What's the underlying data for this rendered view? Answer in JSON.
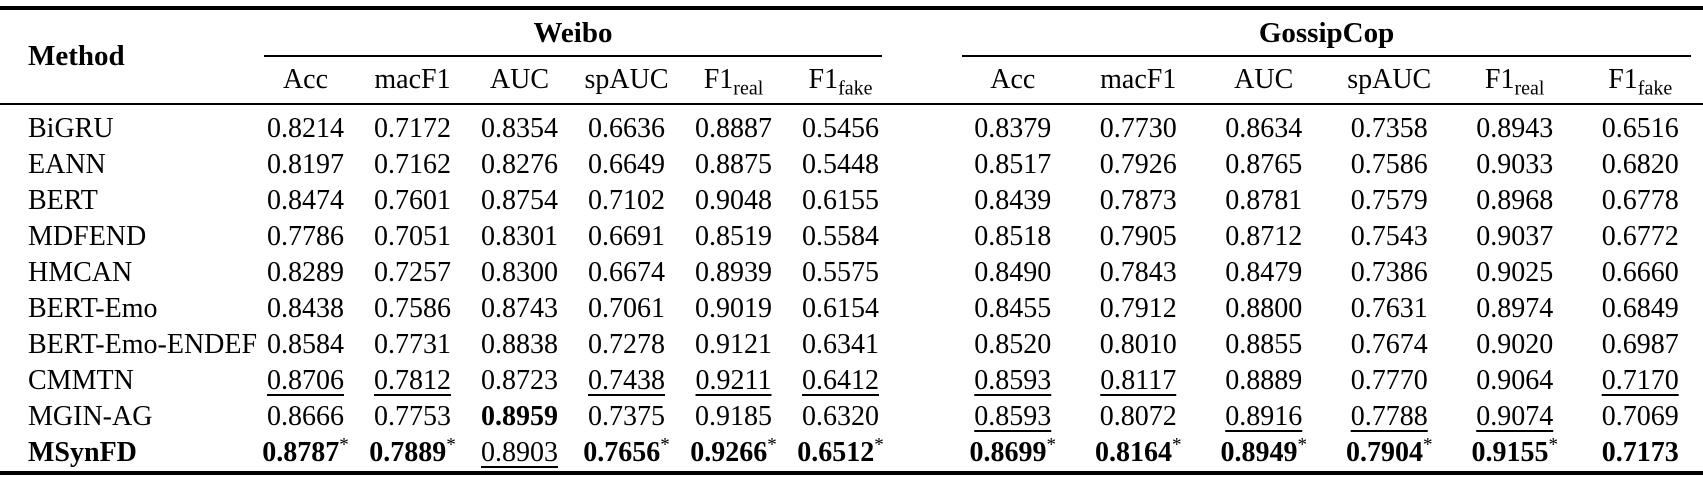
{
  "table": {
    "method_header": "Method",
    "star_symbol": "*",
    "groups": [
      {
        "name": "Weibo",
        "metrics": [
          {
            "label": "Acc",
            "sub": ""
          },
          {
            "label": "macF1",
            "sub": ""
          },
          {
            "label": "AUC",
            "sub": ""
          },
          {
            "label": "spAUC",
            "sub": ""
          },
          {
            "label": "F1",
            "sub": "real"
          },
          {
            "label": "F1",
            "sub": "fake"
          }
        ]
      },
      {
        "name": "GossipCop",
        "metrics": [
          {
            "label": "Acc",
            "sub": ""
          },
          {
            "label": "macF1",
            "sub": ""
          },
          {
            "label": "AUC",
            "sub": ""
          },
          {
            "label": "spAUC",
            "sub": ""
          },
          {
            "label": "F1",
            "sub": "real"
          },
          {
            "label": "F1",
            "sub": "fake"
          }
        ]
      }
    ],
    "rows": [
      {
        "method": "BiGRU",
        "bold_method": false,
        "cells": [
          {
            "v": "0.8214"
          },
          {
            "v": "0.7172"
          },
          {
            "v": "0.8354"
          },
          {
            "v": "0.6636"
          },
          {
            "v": "0.8887"
          },
          {
            "v": "0.5456"
          },
          {
            "v": "0.8379"
          },
          {
            "v": "0.7730"
          },
          {
            "v": "0.8634"
          },
          {
            "v": "0.7358"
          },
          {
            "v": "0.8943"
          },
          {
            "v": "0.6516"
          }
        ]
      },
      {
        "method": "EANN",
        "bold_method": false,
        "cells": [
          {
            "v": "0.8197"
          },
          {
            "v": "0.7162"
          },
          {
            "v": "0.8276"
          },
          {
            "v": "0.6649"
          },
          {
            "v": "0.8875"
          },
          {
            "v": "0.5448"
          },
          {
            "v": "0.8517"
          },
          {
            "v": "0.7926"
          },
          {
            "v": "0.8765"
          },
          {
            "v": "0.7586"
          },
          {
            "v": "0.9033"
          },
          {
            "v": "0.6820"
          }
        ]
      },
      {
        "method": "BERT",
        "bold_method": false,
        "cells": [
          {
            "v": "0.8474"
          },
          {
            "v": "0.7601"
          },
          {
            "v": "0.8754"
          },
          {
            "v": "0.7102"
          },
          {
            "v": "0.9048"
          },
          {
            "v": "0.6155"
          },
          {
            "v": "0.8439"
          },
          {
            "v": "0.7873"
          },
          {
            "v": "0.8781"
          },
          {
            "v": "0.7579"
          },
          {
            "v": "0.8968"
          },
          {
            "v": "0.6778"
          }
        ]
      },
      {
        "method": "MDFEND",
        "bold_method": false,
        "cells": [
          {
            "v": "0.7786"
          },
          {
            "v": "0.7051"
          },
          {
            "v": "0.8301"
          },
          {
            "v": "0.6691"
          },
          {
            "v": "0.8519"
          },
          {
            "v": "0.5584"
          },
          {
            "v": "0.8518"
          },
          {
            "v": "0.7905"
          },
          {
            "v": "0.8712"
          },
          {
            "v": "0.7543"
          },
          {
            "v": "0.9037"
          },
          {
            "v": "0.6772"
          }
        ]
      },
      {
        "method": "HMCAN",
        "bold_method": false,
        "cells": [
          {
            "v": "0.8289"
          },
          {
            "v": "0.7257"
          },
          {
            "v": "0.8300"
          },
          {
            "v": "0.6674"
          },
          {
            "v": "0.8939"
          },
          {
            "v": "0.5575"
          },
          {
            "v": "0.8490"
          },
          {
            "v": "0.7843"
          },
          {
            "v": "0.8479"
          },
          {
            "v": "0.7386"
          },
          {
            "v": "0.9025"
          },
          {
            "v": "0.6660"
          }
        ]
      },
      {
        "method": "BERT-Emo",
        "bold_method": false,
        "cells": [
          {
            "v": "0.8438"
          },
          {
            "v": "0.7586"
          },
          {
            "v": "0.8743"
          },
          {
            "v": "0.7061"
          },
          {
            "v": "0.9019"
          },
          {
            "v": "0.6154"
          },
          {
            "v": "0.8455"
          },
          {
            "v": "0.7912"
          },
          {
            "v": "0.8800"
          },
          {
            "v": "0.7631"
          },
          {
            "v": "0.8974"
          },
          {
            "v": "0.6849"
          }
        ]
      },
      {
        "method": "BERT-Emo-ENDEF",
        "bold_method": false,
        "cells": [
          {
            "v": "0.8584"
          },
          {
            "v": "0.7731"
          },
          {
            "v": "0.8838"
          },
          {
            "v": "0.7278"
          },
          {
            "v": "0.9121"
          },
          {
            "v": "0.6341"
          },
          {
            "v": "0.8520"
          },
          {
            "v": "0.8010"
          },
          {
            "v": "0.8855"
          },
          {
            "v": "0.7674"
          },
          {
            "v": "0.9020"
          },
          {
            "v": "0.6987"
          }
        ]
      },
      {
        "method": "CMMTN",
        "bold_method": false,
        "cells": [
          {
            "v": "0.8706",
            "underline": true
          },
          {
            "v": "0.7812",
            "underline": true
          },
          {
            "v": "0.8723"
          },
          {
            "v": "0.7438",
            "underline": true
          },
          {
            "v": "0.9211",
            "underline": true
          },
          {
            "v": "0.6412",
            "underline": true
          },
          {
            "v": "0.8593",
            "underline": true
          },
          {
            "v": "0.8117",
            "underline": true
          },
          {
            "v": "0.8889"
          },
          {
            "v": "0.7770"
          },
          {
            "v": "0.9064"
          },
          {
            "v": "0.7170",
            "underline": true
          }
        ]
      },
      {
        "method": "MGIN-AG",
        "bold_method": false,
        "cells": [
          {
            "v": "0.8666"
          },
          {
            "v": "0.7753"
          },
          {
            "v": "0.8959",
            "bold": true
          },
          {
            "v": "0.7375"
          },
          {
            "v": "0.9185"
          },
          {
            "v": "0.6320"
          },
          {
            "v": "0.8593",
            "underline": true
          },
          {
            "v": "0.8072"
          },
          {
            "v": "0.8916",
            "underline": true
          },
          {
            "v": "0.7788",
            "underline": true
          },
          {
            "v": "0.9074",
            "underline": true
          },
          {
            "v": "0.7069"
          }
        ]
      },
      {
        "method": "MSynFD",
        "bold_method": true,
        "cells": [
          {
            "v": "0.8787",
            "bold": true,
            "star": true
          },
          {
            "v": "0.7889",
            "bold": true,
            "star": true
          },
          {
            "v": "0.8903",
            "underline": true
          },
          {
            "v": "0.7656",
            "bold": true,
            "star": true
          },
          {
            "v": "0.9266",
            "bold": true,
            "star": true
          },
          {
            "v": "0.6512",
            "bold": true,
            "star": true
          },
          {
            "v": "0.8699",
            "bold": true,
            "star": true
          },
          {
            "v": "0.8164",
            "bold": true,
            "star": true
          },
          {
            "v": "0.8949",
            "bold": true,
            "star": true
          },
          {
            "v": "0.7904",
            "bold": true,
            "star": true
          },
          {
            "v": "0.9155",
            "bold": true,
            "star": true
          },
          {
            "v": "0.7173",
            "bold": true
          }
        ]
      }
    ]
  }
}
